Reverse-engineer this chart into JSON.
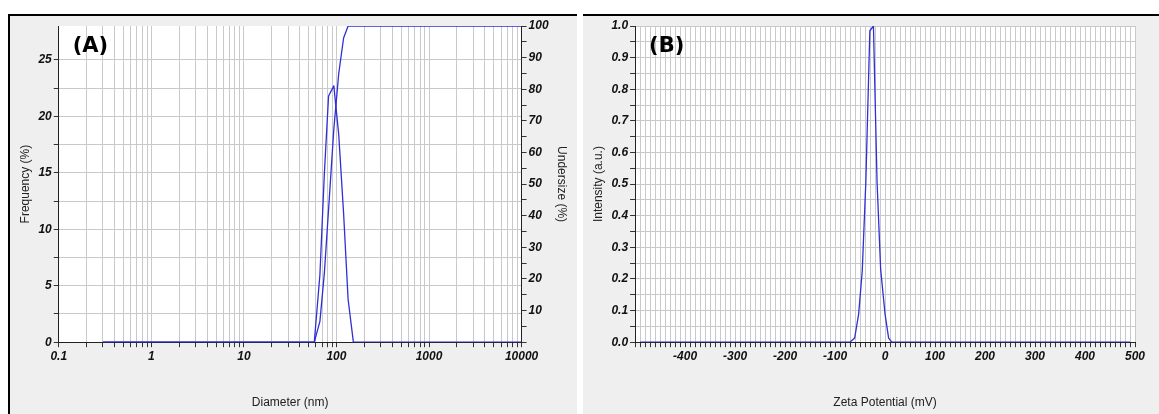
{
  "chart_data": [
    {
      "type": "line",
      "annotations": [
        "(A)"
      ],
      "xlabel": "Diameter (nm)",
      "ylabel": "Frequency (%)",
      "y2label": "Undersize (%)",
      "log": "x",
      "grid": true,
      "xlim": [
        0.1,
        10000
      ],
      "xticks": [
        0.1,
        {
          "value": 0.2,
          "label": null
        },
        {
          "value": 0.3,
          "label": null
        },
        {
          "value": 0.4,
          "label": null
        },
        {
          "value": 0.5,
          "label": null
        },
        {
          "value": 0.6,
          "label": null
        },
        {
          "value": 0.7,
          "label": null
        },
        {
          "value": 0.8,
          "label": null
        },
        {
          "value": 0.9,
          "label": null
        },
        1,
        {
          "value": 2,
          "label": null
        },
        {
          "value": 3,
          "label": null
        },
        {
          "value": 4,
          "label": null
        },
        {
          "value": 5,
          "label": null
        },
        {
          "value": 6,
          "label": null
        },
        {
          "value": 7,
          "label": null
        },
        {
          "value": 8,
          "label": null
        },
        {
          "value": 9,
          "label": null
        },
        10,
        {
          "value": 20,
          "label": null
        },
        {
          "value": 30,
          "label": null
        },
        {
          "value": 40,
          "label": null
        },
        {
          "value": 50,
          "label": null
        },
        {
          "value": 60,
          "label": null
        },
        {
          "value": 70,
          "label": null
        },
        {
          "value": 80,
          "label": null
        },
        {
          "value": 90,
          "label": null
        },
        100,
        {
          "value": 200,
          "label": null
        },
        {
          "value": 300,
          "label": null
        },
        {
          "value": 400,
          "label": null
        },
        {
          "value": 500,
          "label": null
        },
        {
          "value": 600,
          "label": null
        },
        {
          "value": 700,
          "label": null
        },
        {
          "value": 800,
          "label": null
        },
        {
          "value": 900,
          "label": null
        },
        1000,
        {
          "value": 2000,
          "label": null
        },
        {
          "value": 3000,
          "label": null
        },
        {
          "value": 4000,
          "label": null
        },
        {
          "value": 5000,
          "label": null
        },
        {
          "value": 6000,
          "label": null
        },
        {
          "value": 7000,
          "label": null
        },
        {
          "value": 8000,
          "label": null
        },
        {
          "value": 9000,
          "label": null
        },
        10000
      ],
      "ylim": [
        0,
        28
      ],
      "yticks": [
        0,
        {
          "value": 2.5,
          "label": null
        },
        5,
        {
          "value": 7.5,
          "label": null
        },
        10,
        {
          "value": 12.5,
          "label": null
        },
        15,
        {
          "value": 17.5,
          "label": null
        },
        20,
        {
          "value": 22.5,
          "label": null
        },
        25
      ],
      "y2lim": [
        0,
        100
      ],
      "y2ticks": [
        {
          "value": 0,
          "label": null
        },
        {
          "value": 5,
          "label": null
        },
        10,
        {
          "value": 15,
          "label": null
        },
        20,
        {
          "value": 25,
          "label": null
        },
        30,
        {
          "value": 35,
          "label": null
        },
        40,
        {
          "value": 45,
          "label": null
        },
        50,
        {
          "value": 55,
          "label": null
        },
        60,
        {
          "value": 65,
          "label": null
        },
        70,
        {
          "value": 75,
          "label": null
        },
        80,
        {
          "value": 85,
          "label": null
        },
        90,
        {
          "value": 95,
          "label": null
        },
        100
      ],
      "series": [
        {
          "color": "#2f2fd6",
          "x": [
            0.3,
            57.6,
            66.3,
            74.1,
            82.2,
            93.7,
            105.8,
            119.5,
            133.6,
            152.4,
            10000
          ],
          "values": [
            0,
            0,
            6,
            15,
            21.8,
            22.7,
            18.4,
            11.4,
            3.8,
            0,
            0
          ]
        },
        {
          "color": "#2f2fd6",
          "axis": "y2",
          "x": [
            0.3,
            57.6,
            66.3,
            74.1,
            82.9,
            93.7,
            105.8,
            119.5,
            133.6,
            10000
          ],
          "values": [
            0,
            0,
            6.6,
            22,
            43.6,
            67.4,
            84.9,
            96.2,
            100,
            100
          ]
        }
      ]
    },
    {
      "type": "line",
      "annotations": [
        "(B)"
      ],
      "xlabel": "Zeta Potential (mV)",
      "ylabel": "Intensity (a.u.)",
      "grid": true,
      "xlim": [
        -500,
        500
      ],
      "xticks": [
        {
          "value": -500,
          "label": null
        },
        {
          "value": -490,
          "label": null
        },
        {
          "value": -480,
          "label": null
        },
        {
          "value": -470,
          "label": null
        },
        {
          "value": -460,
          "label": null
        },
        {
          "value": -450,
          "label": null
        },
        {
          "value": -440,
          "label": null
        },
        {
          "value": -430,
          "label": null
        },
        {
          "value": -420,
          "label": null
        },
        {
          "value": -410,
          "label": null
        },
        -400,
        {
          "value": -390,
          "label": null
        },
        {
          "value": -380,
          "label": null
        },
        {
          "value": -370,
          "label": null
        },
        {
          "value": -360,
          "label": null
        },
        {
          "value": -350,
          "label": null
        },
        {
          "value": -340,
          "label": null
        },
        {
          "value": -330,
          "label": null
        },
        {
          "value": -320,
          "label": null
        },
        {
          "value": -310,
          "label": null
        },
        -300,
        {
          "value": -290,
          "label": null
        },
        {
          "value": -280,
          "label": null
        },
        {
          "value": -270,
          "label": null
        },
        {
          "value": -260,
          "label": null
        },
        {
          "value": -250,
          "label": null
        },
        {
          "value": -240,
          "label": null
        },
        {
          "value": -230,
          "label": null
        },
        {
          "value": -220,
          "label": null
        },
        {
          "value": -210,
          "label": null
        },
        -200,
        {
          "value": -190,
          "label": null
        },
        {
          "value": -180,
          "label": null
        },
        {
          "value": -170,
          "label": null
        },
        {
          "value": -160,
          "label": null
        },
        {
          "value": -150,
          "label": null
        },
        {
          "value": -140,
          "label": null
        },
        {
          "value": -130,
          "label": null
        },
        {
          "value": -120,
          "label": null
        },
        {
          "value": -110,
          "label": null
        },
        -100,
        {
          "value": -90,
          "label": null
        },
        {
          "value": -80,
          "label": null
        },
        {
          "value": -70,
          "label": null
        },
        {
          "value": -60,
          "label": null
        },
        {
          "value": -50,
          "label": null
        },
        {
          "value": -40,
          "label": null
        },
        {
          "value": -30,
          "label": null
        },
        {
          "value": -20,
          "label": null
        },
        {
          "value": -10,
          "label": null
        },
        0,
        {
          "value": 10,
          "label": null
        },
        {
          "value": 20,
          "label": null
        },
        {
          "value": 30,
          "label": null
        },
        {
          "value": 40,
          "label": null
        },
        {
          "value": 50,
          "label": null
        },
        {
          "value": 60,
          "label": null
        },
        {
          "value": 70,
          "label": null
        },
        {
          "value": 80,
          "label": null
        },
        {
          "value": 90,
          "label": null
        },
        100,
        {
          "value": 110,
          "label": null
        },
        {
          "value": 120,
          "label": null
        },
        {
          "value": 130,
          "label": null
        },
        {
          "value": 140,
          "label": null
        },
        {
          "value": 150,
          "label": null
        },
        {
          "value": 160,
          "label": null
        },
        {
          "value": 170,
          "label": null
        },
        {
          "value": 180,
          "label": null
        },
        {
          "value": 190,
          "label": null
        },
        200,
        {
          "value": 210,
          "label": null
        },
        {
          "value": 220,
          "label": null
        },
        {
          "value": 230,
          "label": null
        },
        {
          "value": 240,
          "label": null
        },
        {
          "value": 250,
          "label": null
        },
        {
          "value": 260,
          "label": null
        },
        {
          "value": 270,
          "label": null
        },
        {
          "value": 280,
          "label": null
        },
        {
          "value": 290,
          "label": null
        },
        300,
        {
          "value": 310,
          "label": null
        },
        {
          "value": 320,
          "label": null
        },
        {
          "value": 330,
          "label": null
        },
        {
          "value": 340,
          "label": null
        },
        {
          "value": 350,
          "label": null
        },
        {
          "value": 360,
          "label": null
        },
        {
          "value": 370,
          "label": null
        },
        {
          "value": 380,
          "label": null
        },
        {
          "value": 390,
          "label": null
        },
        400,
        {
          "value": 410,
          "label": null
        },
        {
          "value": 420,
          "label": null
        },
        {
          "value": 430,
          "label": null
        },
        {
          "value": 440,
          "label": null
        },
        {
          "value": 450,
          "label": null
        },
        {
          "value": 460,
          "label": null
        },
        {
          "value": 470,
          "label": null
        },
        {
          "value": 480,
          "label": null
        },
        {
          "value": 490,
          "label": null
        },
        500
      ],
      "ylim": [
        0,
        1
      ],
      "yticks": [
        {
          "value": 0,
          "label": "0.0"
        },
        {
          "value": 0.05,
          "label": null
        },
        0.1,
        {
          "value": 0.15,
          "label": null
        },
        0.2,
        {
          "value": 0.25,
          "label": null
        },
        0.3,
        {
          "value": 0.35,
          "label": null
        },
        0.4,
        {
          "value": 0.45,
          "label": null
        },
        0.5,
        {
          "value": 0.55,
          "label": null
        },
        0.6,
        {
          "value": 0.65,
          "label": null
        },
        0.7,
        {
          "value": 0.75,
          "label": null
        },
        0.8,
        {
          "value": 0.85,
          "label": null
        },
        0.9,
        {
          "value": 0.95,
          "label": null
        },
        {
          "value": 1,
          "label": "1.0"
        }
      ],
      "series": [
        {
          "color": "#2f2fd6",
          "x": [
            -490,
            -70.4,
            -60.8,
            -52.8,
            -45.6,
            -38.4,
            -30.4,
            -23.2,
            -16,
            -8.8,
            0,
            7.2,
            13.6,
            490
          ],
          "values": [
            0,
            0,
            0.013,
            0.089,
            0.225,
            0.508,
            0.985,
            1,
            0.508,
            0.231,
            0.089,
            0.013,
            0,
            0
          ]
        }
      ]
    }
  ]
}
